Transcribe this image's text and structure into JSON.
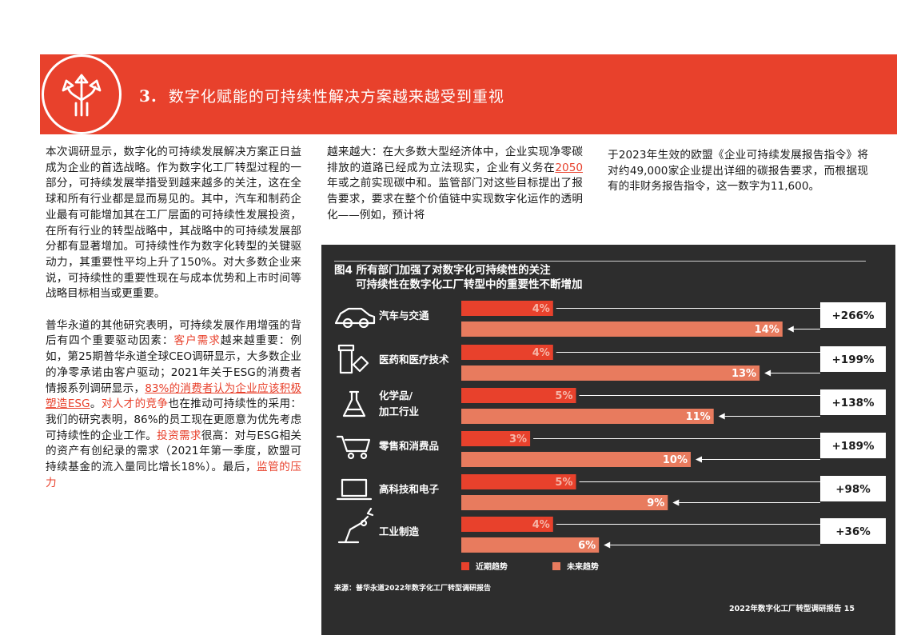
{
  "header": {
    "number": "3.",
    "title": "数字化赋能的可持续性解决方案越来越受到重视",
    "icon": "split-arrows-icon",
    "color": "#e8412c"
  },
  "body": {
    "col1_p1": "本次调研显示，数字化的可持续发展解决方案正日益成为企业的首选战略。作为数字化工厂转型过程的一部分，可持续发展举措受到越来越多的关注，这在全球和所有行业都是显而易见的。其中，汽车和制药企业最有可能增加其在工厂层面的可持续性发展投资，在所有行业的转型战略中，其战略中的可持续发展部分都有显著增加。可持续性作为数字化转型的关键驱动力，其重要性平均上升了150%。对大多数企业来说，可持续性的重要性现在与成本优势和上市时间等战略目标相当或更重要。",
    "col1_p2": {
      "t1": "普华永道的其他研究表明，可持续发展作用增强的背后有四个重要驱动因素：",
      "h1": "客户需求",
      "t2": "越来越重要：例如，第25期普华永道全球CEO调研显示，大多数企业的净零承诺由客户驱动；2021年关于ESG的消费者情报系列调研显示，",
      "l1": "83%的消费者认为企业应该积极塑造ESG",
      "t3": "。",
      "h2": "对人才的竞争",
      "t4": "也在推动可持续性的采用：我们的研究表明，86%的员工现在更愿意为优先考虑可持续性的企业工作。",
      "h3": "投资需求",
      "t5": "很高：对与ESG相关的资产有创纪录的需求（2021年第一季度，欧盟可持续基金的流入量同比增长18%）。最后，",
      "h4": "监管的压力"
    },
    "col2": {
      "t1": "越来越大：在大多数大型经济体中，企业实现净零碳排放的道路已经成为立法现实，企业有义务在",
      "l1": "2050",
      "t2": "年或之前实现碳中和。监管部门对这些目标提出了报告要求，要求在整个价值链中实现数字化运作的透明化——例如，预计将"
    },
    "col3": "于2023年生效的欧盟《企业可持续发展报告指令》将对约49,000家企业提出详细的碳报告要求，而根据现有的非财务报告指令，这一数字为11,600。"
  },
  "figure": {
    "title": "图4 所有部门加强了对数字化可持续性的关注",
    "subtitle": "可持续性在数字化工厂转型中的重要性不断增加",
    "source": "来源：普华永道2022年数字化工厂转型调研报告",
    "footer": "2022年数字化工厂转型调研报告   15"
  },
  "chart_data": {
    "type": "bar",
    "orientation": "horizontal",
    "categories": [
      {
        "label": "汽车与交通",
        "icon": "car-icon"
      },
      {
        "label": "医药和医疗技术",
        "icon": "pharma-icon"
      },
      {
        "label": "化学品/\n加工行业",
        "icon": "flask-icon"
      },
      {
        "label": "零售和消费品",
        "icon": "cart-icon"
      },
      {
        "label": "高科技和电子",
        "icon": "laptop-icon"
      },
      {
        "label": "工业制造",
        "icon": "robot-arm-icon"
      }
    ],
    "series": [
      {
        "name": "近期趋势",
        "values": [
          4,
          4,
          5,
          3,
          5,
          4
        ],
        "color": "#e8412c"
      },
      {
        "name": "未来趋势",
        "values": [
          14,
          13,
          11,
          10,
          9,
          6
        ],
        "color": "#e87b5e"
      }
    ],
    "value_labels_near": [
      "4%",
      "4%",
      "5%",
      "3%",
      "5%",
      "4%"
    ],
    "value_labels_future": [
      "14%",
      "13%",
      "11%",
      "10%",
      "9%",
      "6%"
    ],
    "changes": [
      "+266%",
      "+199%",
      "+138%",
      "+189%",
      "+98%",
      "+36%"
    ],
    "unit": "%",
    "legend_placement": "bottom",
    "grid": false
  }
}
